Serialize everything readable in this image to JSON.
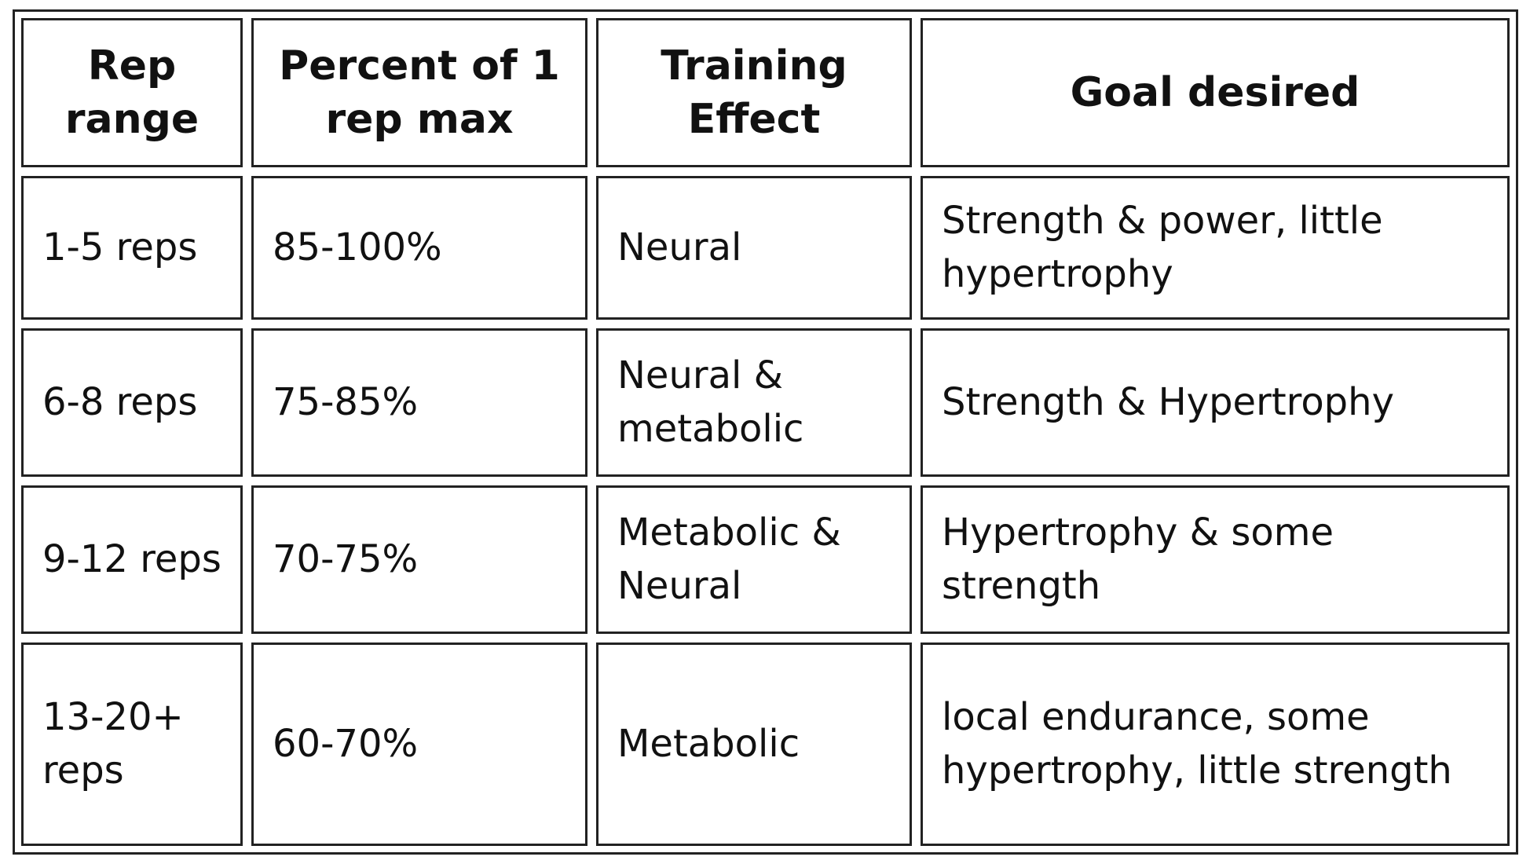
{
  "table": {
    "headers": [
      "Rep range",
      "Percent of 1 rep max",
      "Training Effect",
      "Goal desired"
    ],
    "rows": [
      {
        "rep_range": "1-5 reps",
        "percent": "85-100%",
        "effect": "Neural",
        "goal": "Strength & power, little hypertrophy"
      },
      {
        "rep_range": "6-8 reps",
        "percent": "75-85%",
        "effect": "Neural & metabolic",
        "goal": "Strength & Hypertrophy"
      },
      {
        "rep_range": "9-12 reps",
        "percent": "70-75%",
        "effect": "Metabolic & Neural",
        "goal": "Hypertrophy & some strength"
      },
      {
        "rep_range": "13-20+ reps",
        "percent": "60-70%",
        "effect": "Metabolic",
        "goal": "local endurance, some hypertrophy, little strength"
      }
    ]
  }
}
